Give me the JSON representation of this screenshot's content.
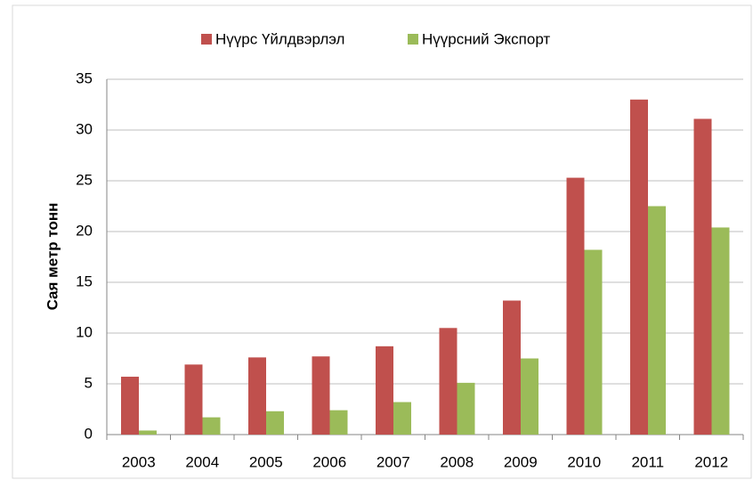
{
  "chart_data": {
    "type": "bar",
    "y_label": "Сая метр тонн",
    "categories": [
      "2003",
      "2004",
      "2005",
      "2006",
      "2007",
      "2008",
      "2009",
      "2010",
      "2011",
      "2012"
    ],
    "series": [
      {
        "name": "Нүүрс Үйлдвэрлэл",
        "color": "#c0504d",
        "values": [
          5.7,
          6.9,
          7.6,
          7.7,
          8.7,
          10.5,
          13.2,
          25.3,
          33.0,
          31.1
        ]
      },
      {
        "name": "Нүүрсний Экспорт",
        "color": "#9bbb59",
        "values": [
          0.4,
          1.7,
          2.3,
          2.4,
          3.2,
          5.1,
          7.5,
          18.2,
          22.5,
          20.4
        ]
      }
    ],
    "ylim": [
      0,
      35
    ],
    "yticks": [
      0,
      5,
      10,
      15,
      20,
      25,
      30,
      35
    ],
    "grid": true,
    "legend": "top"
  }
}
